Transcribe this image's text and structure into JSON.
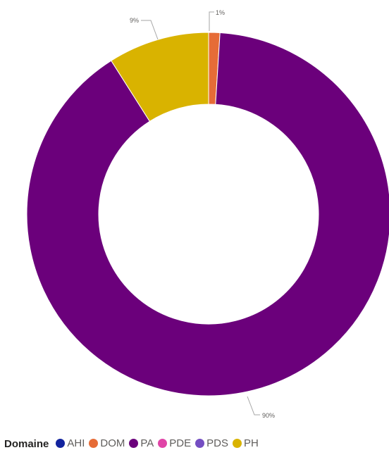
{
  "chart_data": {
    "type": "pie",
    "variant": "donut",
    "legend_title": "Domaine",
    "legend_position": "bottom-left",
    "categories": [
      "AHI",
      "DOM",
      "PA",
      "PDE",
      "PDS",
      "PH"
    ],
    "colors": [
      "#12239e",
      "#e66c37",
      "#6b007b",
      "#e044a7",
      "#744ec2",
      "#d9b300"
    ],
    "values": [
      0,
      1,
      90,
      0,
      0,
      9
    ],
    "data_labels": [
      "",
      "1%",
      "90%",
      "",
      "",
      "9%"
    ]
  }
}
